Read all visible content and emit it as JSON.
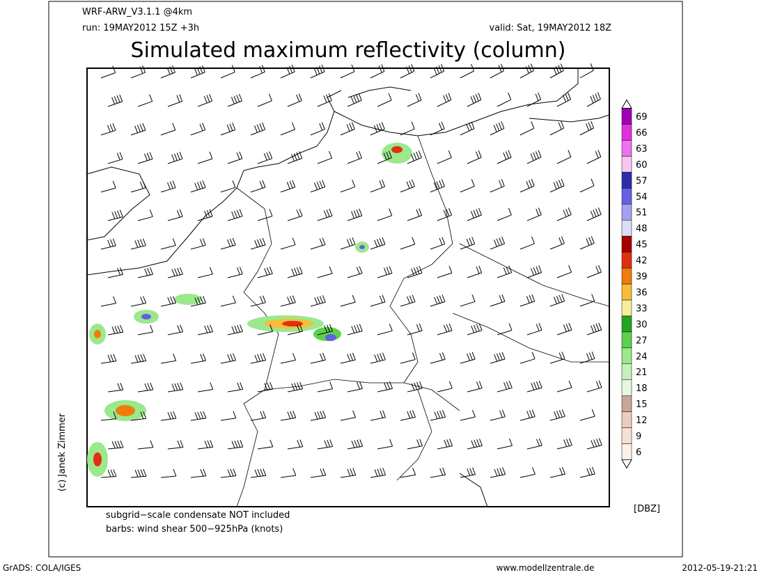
{
  "header": {
    "model": "WRF-ARW_V3.1.1 @4km",
    "run": "run: 19MAY2012 15Z +3h",
    "valid": "valid: Sat, 19MAY2012 18Z",
    "title": "Simulated maximum reflectivity (column)"
  },
  "colorbar": {
    "unit": "[DBZ]",
    "levels": [
      {
        "value": 6,
        "color": "#fdf0e4"
      },
      {
        "value": 9,
        "color": "#f6e0d4"
      },
      {
        "value": 12,
        "color": "#ecccbe"
      },
      {
        "value": 15,
        "color": "#caa496"
      },
      {
        "value": 18,
        "color": "#e6f6e2"
      },
      {
        "value": 21,
        "color": "#c4f0bc"
      },
      {
        "value": 24,
        "color": "#9ce88c"
      },
      {
        "value": 27,
        "color": "#5cd04c"
      },
      {
        "value": 30,
        "color": "#24a424"
      },
      {
        "value": 33,
        "color": "#f6f09c"
      },
      {
        "value": 36,
        "color": "#f8bc3c"
      },
      {
        "value": 39,
        "color": "#f07c0c"
      },
      {
        "value": 42,
        "color": "#e03010"
      },
      {
        "value": 45,
        "color": "#a80000"
      },
      {
        "value": 48,
        "color": "#dcdcf8"
      },
      {
        "value": 51,
        "color": "#a4a0f0"
      },
      {
        "value": 54,
        "color": "#6460e0"
      },
      {
        "value": 57,
        "color": "#2c2cac"
      },
      {
        "value": 60,
        "color": "#f8c4f0"
      },
      {
        "value": 63,
        "color": "#f070f0"
      },
      {
        "value": 66,
        "color": "#e030e0"
      },
      {
        "value": 69,
        "color": "#a000b4"
      }
    ]
  },
  "notes": [
    "subgrid−scale condensate NOT included",
    "barbs: wind shear 500−925hPa (knots)"
  ],
  "credit": "(c) Janek Zimmer",
  "footer": {
    "left": "GrADS: COLA/IGES",
    "center": "www.modellzentrale.de",
    "right": "2012-05-19-21:21"
  }
}
